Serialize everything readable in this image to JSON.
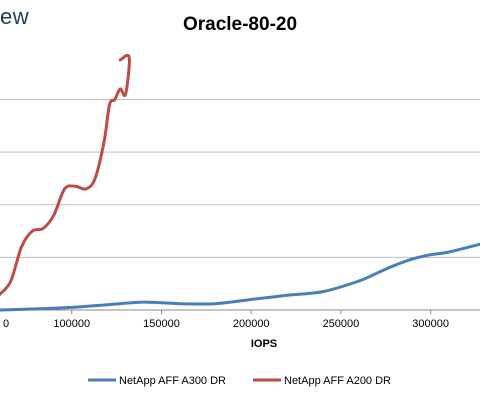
{
  "header": {
    "logo_fragment": "ew"
  },
  "chart_data": {
    "type": "line",
    "title": "Oracle-80-20",
    "xlabel": "IOPS",
    "ylabel": "",
    "x_ticks": [
      100000,
      150000,
      200000,
      250000,
      300000
    ],
    "x_tick_labels": [
      "100000",
      "150000",
      "200000",
      "250000",
      "300000"
    ],
    "x_partial_tick_label": "0",
    "x_visible_range": [
      60000,
      327500
    ],
    "y_visible_range": [
      0,
      4.75
    ],
    "y_gridlines": [
      1,
      2,
      3,
      4,
      5
    ],
    "grid": true,
    "legend_position": "bottom",
    "series": [
      {
        "name": "NetApp AFF A300 DR",
        "color": "#4a7ebb",
        "x": [
          60000,
          80000,
          100000,
          120000,
          140000,
          160000,
          180000,
          200000,
          220000,
          240000,
          260000,
          270000,
          280000,
          290000,
          300000,
          310000,
          327500
        ],
        "y": [
          0.0,
          0.02,
          0.05,
          0.1,
          0.15,
          0.12,
          0.12,
          0.2,
          0.28,
          0.35,
          0.55,
          0.7,
          0.85,
          0.97,
          1.05,
          1.1,
          1.25
        ]
      },
      {
        "name": "NetApp AFF A200 DR",
        "color": "#be4b48",
        "x": [
          60000,
          66000,
          72000,
          78000,
          84000,
          90000,
          96000,
          102000,
          108000,
          113000,
          118000,
          121000,
          124000,
          127000,
          130000,
          132000,
          127000
        ],
        "y": [
          0.3,
          0.55,
          1.2,
          1.5,
          1.55,
          1.8,
          2.3,
          2.35,
          2.3,
          2.5,
          3.2,
          3.9,
          4.0,
          4.2,
          4.1,
          4.8,
          4.75
        ]
      }
    ]
  }
}
